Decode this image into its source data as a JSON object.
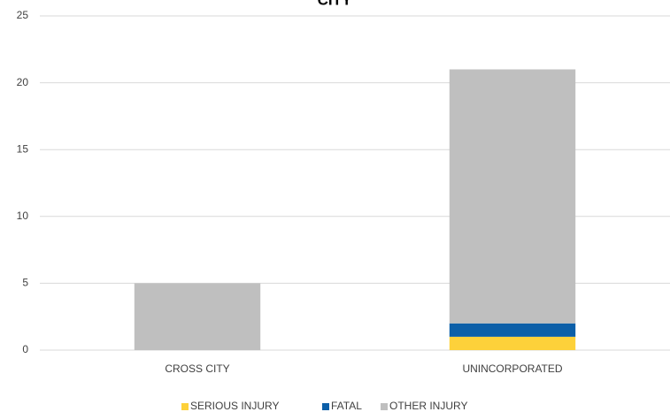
{
  "chart_data": {
    "type": "stacked_bar",
    "title": "CITY",
    "categories": [
      "CROSS CITY",
      "UNINCORPORATED"
    ],
    "series": [
      {
        "name": "SERIOUS INJURY",
        "color": "#fdd13a",
        "values": [
          0,
          1
        ]
      },
      {
        "name": "FATAL",
        "color": "#0c5fa8",
        "values": [
          0,
          1
        ]
      },
      {
        "name": "OTHER INJURY",
        "color": "#bfbfbf",
        "values": [
          5,
          19
        ]
      }
    ],
    "ylim": [
      0,
      25
    ],
    "yticks": [
      0,
      5,
      10,
      15,
      20,
      25
    ],
    "grid": true,
    "legend": "bottom"
  }
}
